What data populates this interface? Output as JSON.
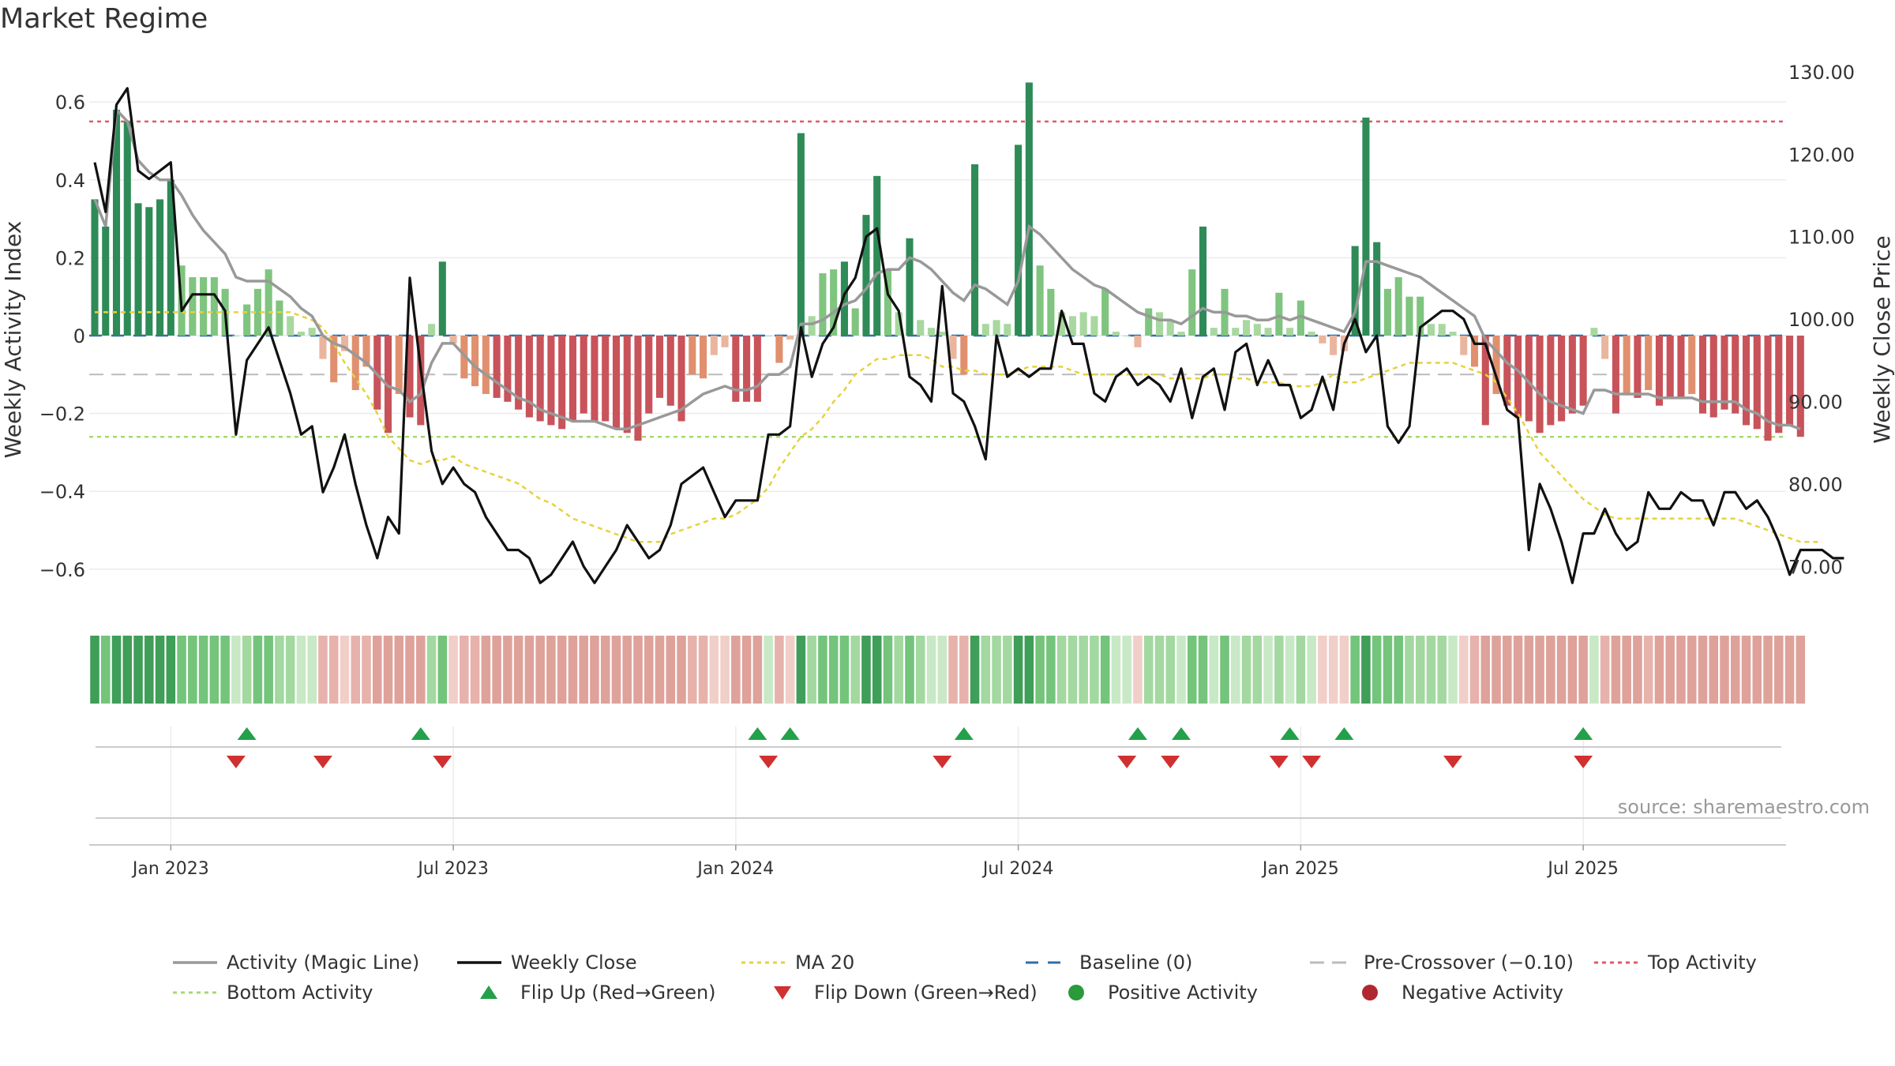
{
  "title": "Market Regime",
  "source": "source: sharemaestro.com",
  "chart_data": {
    "type": "bar",
    "title": "Market Regime",
    "ylabel_left": "Weekly Activity Index",
    "ylabel_right": "Weekly Close Price",
    "ylim_left": [
      -0.72,
      0.72
    ],
    "ylim_right": [
      64,
      132
    ],
    "yticks_left": [
      {
        "v": 0.6,
        "t": "0.6"
      },
      {
        "v": 0.4,
        "t": "0.4"
      },
      {
        "v": 0.2,
        "t": "0.2"
      },
      {
        "v": 0,
        "t": "0"
      },
      {
        "v": -0.2,
        "t": "−0.2"
      },
      {
        "v": -0.4,
        "t": "−0.4"
      },
      {
        "v": -0.6,
        "t": "−0.6"
      }
    ],
    "yticks_right": [
      "130.00",
      "120.00",
      "110.00",
      "100.00",
      "90.00",
      "80.00",
      "70.00"
    ],
    "xticks": [
      {
        "w": 7,
        "t": "Jan 2023"
      },
      {
        "w": 33,
        "t": "Jul 2023"
      },
      {
        "w": 59,
        "t": "Jan 2024"
      },
      {
        "w": 85,
        "t": "Jul 2024"
      },
      {
        "w": 111,
        "t": "Jan 2025"
      },
      {
        "w": 137,
        "t": "Jul 2025"
      }
    ],
    "weeks": 157,
    "reference_lines": {
      "baseline": 0,
      "pre_crossover": -0.1,
      "top_activity": 0.55,
      "bottom_activity": -0.26,
      "ma20_start_level": 0.06
    },
    "activity": [
      0.35,
      0.28,
      0.58,
      0.55,
      0.34,
      0.33,
      0.35,
      0.4,
      0.18,
      0.15,
      0.15,
      0.15,
      0.12,
      0.0,
      0.08,
      0.12,
      0.17,
      0.09,
      0.05,
      0.01,
      0.02,
      -0.06,
      -0.12,
      -0.04,
      -0.14,
      -0.08,
      -0.19,
      -0.25,
      -0.15,
      -0.21,
      -0.23,
      0.03,
      0.19,
      -0.02,
      -0.11,
      -0.13,
      -0.15,
      -0.16,
      -0.17,
      -0.19,
      -0.21,
      -0.22,
      -0.23,
      -0.24,
      -0.22,
      -0.2,
      -0.22,
      -0.22,
      -0.24,
      -0.25,
      -0.27,
      -0.2,
      -0.16,
      -0.18,
      -0.22,
      -0.1,
      -0.11,
      -0.05,
      -0.03,
      -0.17,
      -0.17,
      -0.17,
      0.0,
      -0.07,
      -0.01,
      0.52,
      0.05,
      0.16,
      0.17,
      0.19,
      0.07,
      0.31,
      0.41,
      0.17,
      0.06,
      0.25,
      0.04,
      0.02,
      0.01,
      -0.06,
      -0.1,
      0.44,
      0.03,
      0.04,
      0.03,
      0.49,
      0.65,
      0.18,
      0.12,
      0.06,
      0.05,
      0.06,
      0.05,
      0.12,
      0.01,
      0.0,
      -0.03,
      0.07,
      0.06,
      0.04,
      0.01,
      0.17,
      0.28,
      0.02,
      0.12,
      0.02,
      0.04,
      0.03,
      0.02,
      0.11,
      0.02,
      0.09,
      0.01,
      -0.02,
      -0.05,
      -0.04,
      0.23,
      0.56,
      0.24,
      0.12,
      0.15,
      0.1,
      0.1,
      0.03,
      0.03,
      0.01,
      -0.05,
      -0.08,
      -0.23,
      -0.15,
      -0.18,
      -0.21,
      -0.22,
      -0.25,
      -0.23,
      -0.22,
      -0.2,
      -0.18,
      0.02,
      -0.06,
      -0.2,
      -0.15,
      -0.16,
      -0.14,
      -0.18,
      -0.16,
      -0.16,
      -0.15,
      -0.2,
      -0.21,
      -0.19,
      -0.2,
      -0.23,
      -0.24,
      -0.27,
      -0.25,
      -0.23,
      -0.26
    ],
    "magic_line": [
      0.35,
      0.28,
      0.58,
      0.55,
      0.45,
      0.42,
      0.4,
      0.4,
      0.36,
      0.31,
      0.27,
      0.24,
      0.21,
      0.15,
      0.14,
      0.14,
      0.14,
      0.12,
      0.1,
      0.07,
      0.05,
      0.0,
      -0.02,
      -0.03,
      -0.05,
      -0.07,
      -0.1,
      -0.13,
      -0.14,
      -0.17,
      -0.15,
      -0.07,
      -0.02,
      -0.02,
      -0.05,
      -0.08,
      -0.1,
      -0.12,
      -0.14,
      -0.16,
      -0.17,
      -0.19,
      -0.2,
      -0.21,
      -0.22,
      -0.22,
      -0.22,
      -0.23,
      -0.24,
      -0.24,
      -0.23,
      -0.22,
      -0.21,
      -0.2,
      -0.19,
      -0.17,
      -0.15,
      -0.14,
      -0.13,
      -0.14,
      -0.14,
      -0.13,
      -0.1,
      -0.1,
      -0.08,
      0.03,
      0.03,
      0.04,
      0.06,
      0.08,
      0.09,
      0.12,
      0.16,
      0.17,
      0.17,
      0.2,
      0.19,
      0.17,
      0.14,
      0.11,
      0.09,
      0.13,
      0.12,
      0.1,
      0.08,
      0.14,
      0.28,
      0.26,
      0.23,
      0.2,
      0.17,
      0.15,
      0.13,
      0.12,
      0.1,
      0.08,
      0.06,
      0.05,
      0.04,
      0.04,
      0.03,
      0.05,
      0.07,
      0.06,
      0.06,
      0.05,
      0.05,
      0.04,
      0.04,
      0.05,
      0.04,
      0.05,
      0.04,
      0.03,
      0.02,
      0.01,
      0.06,
      0.19,
      0.19,
      0.18,
      0.17,
      0.16,
      0.15,
      0.13,
      0.11,
      0.09,
      0.07,
      0.05,
      -0.01,
      -0.04,
      -0.07,
      -0.09,
      -0.12,
      -0.15,
      -0.17,
      -0.18,
      -0.19,
      -0.2,
      -0.14,
      -0.14,
      -0.15,
      -0.15,
      -0.15,
      -0.15,
      -0.16,
      -0.16,
      -0.16,
      -0.16,
      -0.17,
      -0.17,
      -0.17,
      -0.17,
      -0.19,
      -0.2,
      -0.22,
      -0.23,
      -0.23,
      -0.24
    ],
    "weekly_close": [
      119,
      113,
      126,
      128,
      118,
      117,
      118,
      119,
      101,
      103,
      103,
      103,
      101,
      86,
      95,
      97,
      99,
      95,
      91,
      86,
      87,
      79,
      82,
      86,
      80,
      75,
      71,
      76,
      74,
      105,
      94,
      84,
      80,
      82,
      80,
      79,
      76,
      74,
      72,
      72,
      71,
      68,
      69,
      71,
      73,
      70,
      68,
      70,
      72,
      75,
      73,
      71,
      72,
      75,
      80,
      81,
      82,
      79,
      76,
      78,
      78,
      78,
      86,
      86,
      87,
      99,
      93,
      97,
      99,
      103,
      105,
      110,
      111,
      103,
      101,
      93,
      92,
      90,
      104,
      91,
      90,
      87,
      83,
      98,
      93,
      94,
      93,
      94,
      94,
      101,
      97,
      97,
      91,
      90,
      93,
      94,
      92,
      93,
      92,
      90,
      94,
      88,
      93,
      94,
      89,
      96,
      97,
      92,
      95,
      92,
      92,
      88,
      89,
      93,
      89,
      97,
      100,
      96,
      98,
      87,
      85,
      87,
      99,
      100,
      101,
      101,
      100,
      97,
      97,
      93,
      89,
      88,
      72,
      80,
      77,
      73,
      68,
      74,
      74,
      77,
      74,
      72,
      73,
      79,
      77,
      77,
      79,
      78,
      78,
      75,
      79,
      79,
      77,
      78,
      76,
      73,
      69,
      72,
      72,
      72,
      71,
      71
    ],
    "ma20": [
      0.06,
      0.06,
      0.06,
      0.06,
      0.06,
      0.06,
      0.06,
      0.06,
      0.06,
      0.06,
      0.06,
      0.06,
      0.06,
      0.06,
      0.06,
      0.06,
      0.06,
      0.06,
      0.06,
      0.05,
      0.04,
      0.02,
      -0.02,
      -0.07,
      -0.11,
      -0.15,
      -0.2,
      -0.26,
      -0.29,
      -0.32,
      -0.33,
      -0.32,
      -0.32,
      -0.31,
      -0.33,
      -0.34,
      -0.35,
      -0.36,
      -0.37,
      -0.38,
      -0.4,
      -0.42,
      -0.43,
      -0.45,
      -0.47,
      -0.48,
      -0.49,
      -0.5,
      -0.51,
      -0.52,
      -0.53,
      -0.53,
      -0.53,
      -0.51,
      -0.5,
      -0.49,
      -0.48,
      -0.47,
      -0.47,
      -0.46,
      -0.44,
      -0.42,
      -0.39,
      -0.34,
      -0.3,
      -0.26,
      -0.24,
      -0.21,
      -0.17,
      -0.14,
      -0.1,
      -0.08,
      -0.06,
      -0.06,
      -0.05,
      -0.05,
      -0.05,
      -0.06,
      -0.08,
      -0.08,
      -0.09,
      -0.09,
      -0.1,
      -0.1,
      -0.1,
      -0.09,
      -0.08,
      -0.08,
      -0.08,
      -0.08,
      -0.09,
      -0.1,
      -0.1,
      -0.1,
      -0.1,
      -0.1,
      -0.1,
      -0.1,
      -0.1,
      -0.11,
      -0.11,
      -0.11,
      -0.11,
      -0.1,
      -0.1,
      -0.11,
      -0.11,
      -0.12,
      -0.12,
      -0.12,
      -0.13,
      -0.13,
      -0.13,
      -0.12,
      -0.1,
      -0.12,
      -0.12,
      -0.11,
      -0.1,
      -0.09,
      -0.08,
      -0.07,
      -0.07,
      -0.07,
      -0.07,
      -0.07,
      -0.08,
      -0.09,
      -0.1,
      -0.12,
      -0.16,
      -0.2,
      -0.25,
      -0.3,
      -0.33,
      -0.36,
      -0.39,
      -0.42,
      -0.44,
      -0.46,
      -0.47,
      -0.47,
      -0.47,
      -0.47,
      -0.47,
      -0.47,
      -0.47,
      -0.47,
      -0.47,
      -0.47,
      -0.47,
      -0.47,
      -0.48,
      -0.49,
      -0.5,
      -0.51,
      -0.52,
      -0.53,
      -0.53,
      -0.53
    ],
    "flip_up_weeks": [
      14,
      30,
      61,
      64,
      80,
      96,
      100,
      110,
      115,
      137
    ],
    "flip_down_weeks": [
      13,
      21,
      32,
      62,
      78,
      95,
      99,
      109,
      112,
      125,
      137
    ],
    "legend": [
      {
        "key": "magic",
        "label": "Activity (Magic Line)",
        "color": "#999999"
      },
      {
        "key": "close",
        "label": "Weekly Close",
        "color": "#111111"
      },
      {
        "key": "ma20",
        "label": "MA 20",
        "color": "#e6d23c"
      },
      {
        "key": "baseline",
        "label": "Baseline (0)",
        "color": "#2f6fa8"
      },
      {
        "key": "precross",
        "label": "Pre-Crossover (−0.10)",
        "color": "#bbbbbb"
      },
      {
        "key": "top",
        "label": "Top Activity",
        "color": "#e05a6a"
      },
      {
        "key": "bottom",
        "label": "Bottom Activity",
        "color": "#a8d870"
      },
      {
        "key": "flipup",
        "label": "Flip Up (Red→Green)",
        "color": "#22a04a"
      },
      {
        "key": "flipdown",
        "label": "Flip Down (Green→Red)",
        "color": "#d03030"
      },
      {
        "key": "pos",
        "label": "Positive Activity",
        "color": "#2a9a3a"
      },
      {
        "key": "neg",
        "label": "Negative Activity",
        "color": "#b0282e"
      }
    ]
  }
}
